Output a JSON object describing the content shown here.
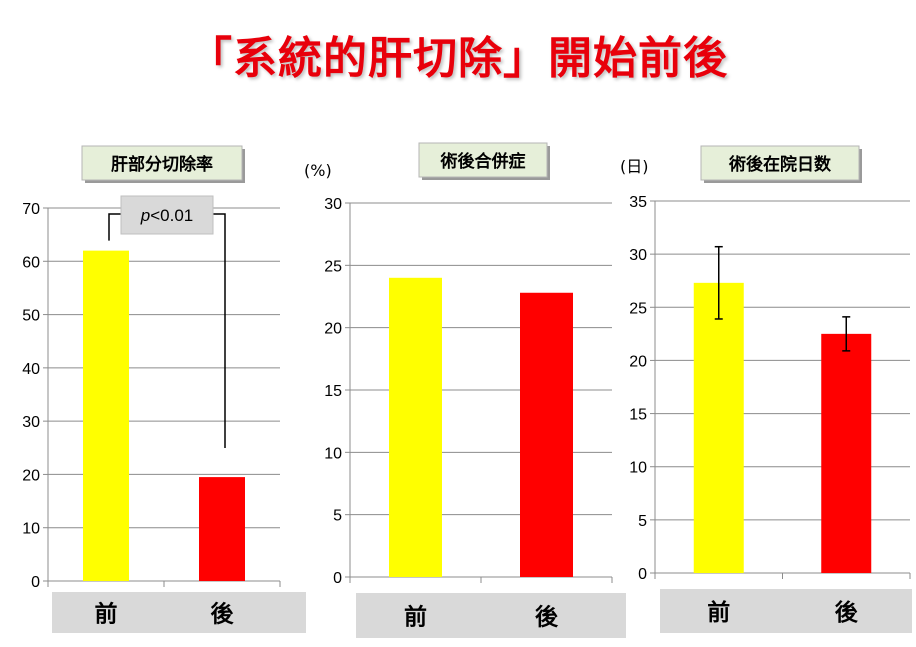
{
  "page_title": "「系統的肝切除」開始前後",
  "colors": {
    "before": "#ffff00",
    "after": "#ff0000",
    "title": "#e8000b",
    "category_band": "#d9d9d9",
    "title_box": "#e6efd9"
  },
  "chart_data": [
    {
      "type": "bar",
      "title": "肝部分切除率",
      "ylabel": "",
      "categories": [
        "前",
        "後"
      ],
      "values": [
        62,
        19.5
      ],
      "ylim": [
        0,
        70
      ],
      "yticks": [
        0,
        10,
        20,
        30,
        40,
        50,
        60,
        70
      ],
      "grid": true,
      "annotation": {
        "label_italic": "p",
        "label_rest": "<0.01"
      }
    },
    {
      "type": "bar",
      "title": "術後合併症",
      "ylabel": "(%)",
      "categories": [
        "前",
        "後"
      ],
      "values": [
        24,
        22.8
      ],
      "ylim": [
        0,
        30
      ],
      "yticks": [
        0,
        5,
        10,
        15,
        20,
        25,
        30
      ],
      "grid": true
    },
    {
      "type": "bar",
      "title": "術後在院日数",
      "ylabel": "(日)",
      "categories": [
        "前",
        "後"
      ],
      "values": [
        27.3,
        22.5
      ],
      "error_bars": [
        [
          23.9,
          30.7
        ],
        [
          20.9,
          24.1
        ]
      ],
      "ylim": [
        0,
        35
      ],
      "yticks": [
        0,
        5,
        10,
        15,
        20,
        25,
        30,
        35
      ],
      "grid": true
    }
  ]
}
